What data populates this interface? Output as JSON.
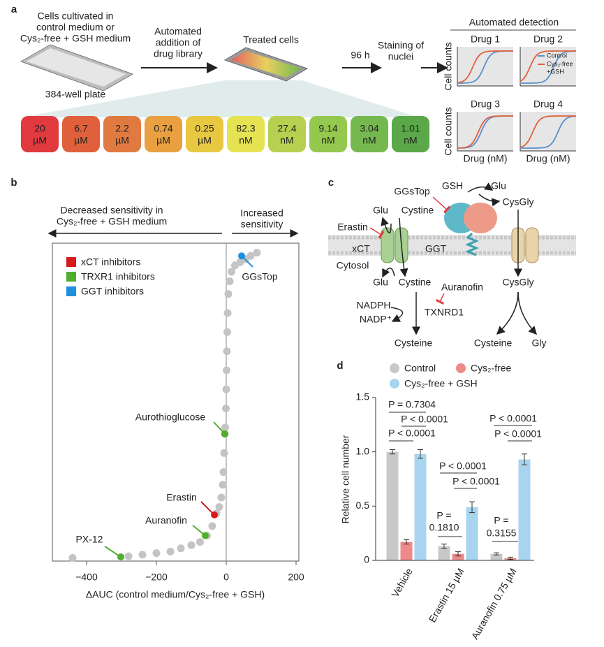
{
  "panel_a": {
    "label": "a",
    "medium_text": [
      "Cells cultivated in",
      "control medium or",
      "Cys₂-free + GSH medium"
    ],
    "plate_label": "384-well plate",
    "step1": [
      "Automated",
      "addition of",
      "drug library"
    ],
    "treated": "Treated cells",
    "time": "96 h",
    "staining": [
      "Staining of",
      "nuclei"
    ],
    "detection_title": "Automated detection",
    "concentrations": [
      [
        "20",
        "µM"
      ],
      [
        "6.7",
        "µM"
      ],
      [
        "2.2",
        "µM"
      ],
      [
        "0.74",
        "µM"
      ],
      [
        "0.25",
        "µM"
      ],
      [
        "82.3",
        "nM"
      ],
      [
        "27.4",
        "nM"
      ],
      [
        "9.14",
        "nM"
      ],
      [
        "3.04",
        "nM"
      ],
      [
        "1.01",
        "nM"
      ]
    ],
    "concentration_colors": [
      "#e03a3e",
      "#e0603c",
      "#e07a40",
      "#e8a040",
      "#e8c840",
      "#e6e352",
      "#b8d050",
      "#94c84e",
      "#74b84e",
      "#5aa848"
    ],
    "drugs": [
      "Drug 1",
      "Drug 2",
      "Drug 3",
      "Drug 4"
    ],
    "y_label": "Cell counts",
    "x_label": "Drug (nM)",
    "legend": [
      {
        "lines": [
          "Control"
        ],
        "color": "#5b8fc9"
      },
      {
        "lines": [
          "Cys₂-free",
          "+GSH"
        ],
        "color": "#e0603c"
      }
    ]
  },
  "panel_c": {
    "label": "c",
    "nodes": [
      "GGsTop",
      "GSH",
      "Glu",
      "CysGly",
      "Glu",
      "Cystine",
      "Erastin",
      "xCT",
      "GGT",
      "Cytosol",
      "Glu",
      "Cystine",
      "CysGly",
      "Auranofin",
      "NADPH",
      "NADP⁺",
      "TXNRD1",
      "Cysteine",
      "Cysteine",
      "Gly"
    ]
  },
  "chart_data": [
    {
      "type": "scatter",
      "label": "b",
      "left_annotation": [
        "Decreased sensitivity in",
        "Cys₂-free + GSH medium"
      ],
      "right_annotation": [
        "Increased",
        "sensitivity"
      ],
      "x_label": "ΔAUC (control medium/Cys₂-free + GSH)",
      "xlim": [
        -498,
        208
      ],
      "xticks": [
        {
          "value": -400,
          "label": "−400"
        },
        {
          "value": -200,
          "label": "−200"
        },
        0,
        200
      ],
      "ylim": [
        0,
        100
      ],
      "points": {
        "color": "#c4c4c4",
        "x": [
          88,
          70,
          55,
          40,
          25,
          15,
          10,
          6,
          4,
          3,
          2,
          1,
          0,
          -1,
          -3,
          -4,
          -6,
          -8,
          -10,
          -14,
          -20,
          -28,
          -40,
          -55,
          -75,
          -100,
          -130,
          -160,
          -200,
          -240,
          -280,
          -440
        ],
        "y": [
          97,
          96,
          95,
          94,
          93,
          91,
          88,
          84,
          78,
          72,
          66,
          60,
          54,
          48,
          42,
          40,
          34,
          28,
          24,
          20,
          17,
          15,
          11,
          8,
          6,
          5,
          4,
          3,
          2.5,
          2,
          1.5,
          1
        ]
      },
      "legend": [
        {
          "name": "xCT inhibitors",
          "color": "#d7191c"
        },
        {
          "name": "TRXR1 inhibitors",
          "color": "#4fae2e"
        },
        {
          "name": "GGT inhibitors",
          "color": "#1f8fe0"
        }
      ],
      "highlights": [
        {
          "label": "GGsTop",
          "x": 44,
          "y": 96,
          "color": "#1f8fe0"
        },
        {
          "label": "Aurothioglucose",
          "x": -4,
          "y": 40,
          "color": "#4fae2e"
        },
        {
          "label": "Erastin",
          "x": -34,
          "y": 14.5,
          "color": "#d7191c"
        },
        {
          "label": "Auranofin",
          "x": -60,
          "y": 8,
          "color": "#4fae2e"
        },
        {
          "label": "PX-12",
          "x": -302,
          "y": 1.3,
          "color": "#4fae2e"
        }
      ]
    },
    {
      "type": "bar",
      "label": "d",
      "y_label": "Relative cell number",
      "categories": [
        "Vehicle",
        "Erastin 15 µM",
        "Auranofin 0.75 µM"
      ],
      "ylim": [
        0,
        1.5
      ],
      "yticks": [
        0,
        0.5,
        {
          "value": 1,
          "label": "1.0"
        },
        1.5
      ],
      "series": [
        {
          "name": "Control",
          "color": "#c8c8c8",
          "values": [
            1.0,
            0.13,
            0.06
          ],
          "errors": [
            0.02,
            0.02,
            0.01
          ]
        },
        {
          "name": "Cys₂-free",
          "color": "#ee8a8a",
          "values": [
            0.17,
            0.06,
            0.02
          ],
          "errors": [
            0.02,
            0.02,
            0.01
          ]
        },
        {
          "name": "Cys₂-free + GSH",
          "color": "#a8d4f0",
          "values": [
            0.98,
            0.49,
            0.93
          ],
          "errors": [
            0.04,
            0.05,
            0.05
          ]
        }
      ],
      "annotations": [
        "P = 0.7304",
        "P < 0.0001",
        "P < 0.0001",
        "P < 0.0001",
        "P < 0.0001",
        "P =",
        "0.1810",
        "P < 0.0001",
        "P < 0.0001",
        "P =",
        "0.3155"
      ]
    }
  ]
}
